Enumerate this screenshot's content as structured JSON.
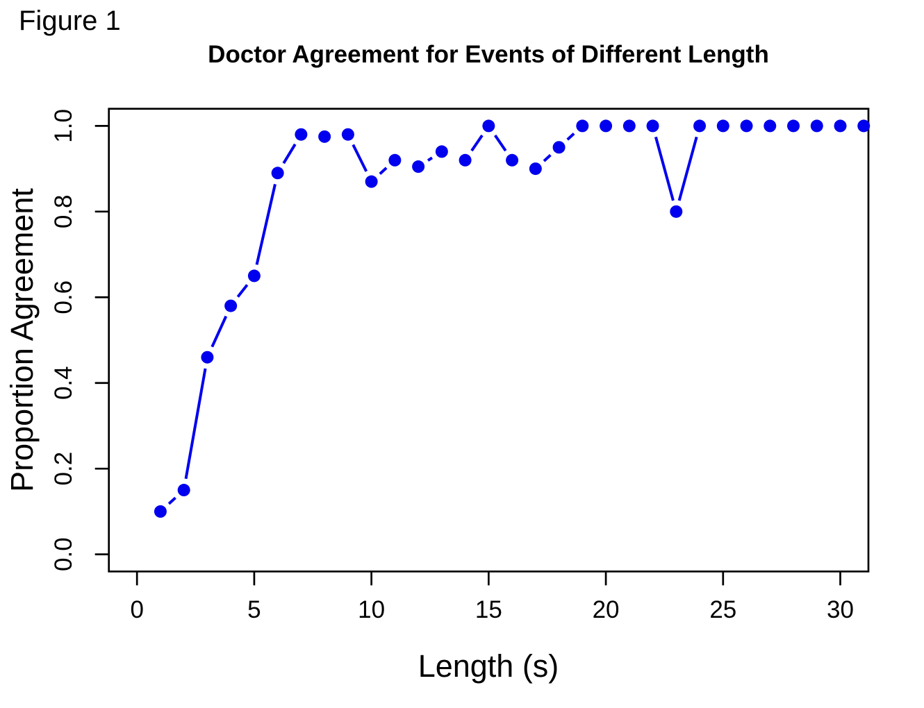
{
  "figure": {
    "label": "Figure 1"
  },
  "chart_data": {
    "type": "line",
    "title": "Doctor Agreement for Events of Different Length",
    "xlabel": "Length (s)",
    "ylabel": "Proportion Agreement",
    "x": [
      1,
      2,
      3,
      4,
      5,
      6,
      7,
      8,
      9,
      10,
      11,
      12,
      13,
      14,
      15,
      16,
      17,
      18,
      19,
      20,
      21,
      22,
      23,
      24,
      25,
      26,
      27,
      28,
      29,
      30,
      31
    ],
    "y": [
      0.1,
      0.15,
      0.46,
      0.58,
      0.65,
      0.89,
      0.98,
      0.975,
      0.98,
      0.87,
      0.92,
      0.905,
      0.94,
      0.92,
      1.0,
      0.92,
      0.9,
      0.95,
      1.0,
      1.0,
      1.0,
      1.0,
      0.8,
      1.0,
      1.0,
      1.0,
      1.0,
      1.0,
      1.0,
      1.0,
      1.0
    ],
    "x_ticks": [
      0,
      5,
      10,
      15,
      20,
      25,
      30
    ],
    "x_tick_labels": [
      "0",
      "5",
      "10",
      "15",
      "20",
      "25",
      "30"
    ],
    "y_ticks": [
      0.0,
      0.2,
      0.4,
      0.6,
      0.8,
      1.0
    ],
    "y_tick_labels": [
      "0.0",
      "0.2",
      "0.4",
      "0.6",
      "0.8",
      "1.0"
    ],
    "x_range": [
      -1.2,
      31.2
    ],
    "y_range": [
      -0.04,
      1.04
    ],
    "grid": false,
    "legend": null,
    "marker": "filled-circle",
    "line_style": "segments-with-gaps-at-points",
    "colors": {
      "series": "#0000EE",
      "axis": "#000000",
      "background": "#FFFFFF"
    }
  }
}
